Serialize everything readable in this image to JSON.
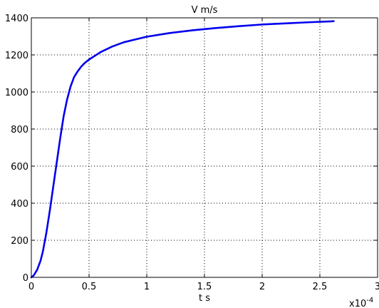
{
  "chart_data": {
    "type": "line",
    "title": "V m/s",
    "xlabel": "t s",
    "ylabel": "",
    "x_multiplier_label": "x10",
    "x_multiplier_exponent": "-4",
    "xlim": [
      0,
      3
    ],
    "ylim": [
      0,
      1400
    ],
    "xticks": [
      0,
      0.5,
      1,
      1.5,
      2,
      2.5,
      3
    ],
    "xtick_labels": [
      "0",
      "0.5",
      "1",
      "1.5",
      "2",
      "2.5",
      "3"
    ],
    "yticks": [
      0,
      200,
      400,
      600,
      800,
      1000,
      1200,
      1400
    ],
    "ytick_labels": [
      "0",
      "200",
      "400",
      "600",
      "800",
      "1000",
      "1200",
      "1400"
    ],
    "grid": true,
    "grid_style": "dotted",
    "series": [
      {
        "color": "#0000ee",
        "x": [
          0,
          0.02,
          0.05,
          0.08,
          0.1,
          0.13,
          0.16,
          0.19,
          0.22,
          0.25,
          0.28,
          0.31,
          0.34,
          0.37,
          0.4,
          0.43,
          0.46,
          0.5,
          0.55,
          0.6,
          0.7,
          0.8,
          0.9,
          1.0,
          1.2,
          1.4,
          1.6,
          1.8,
          2.0,
          2.2,
          2.4,
          2.6,
          2.62
        ],
        "y": [
          0,
          10,
          40,
          90,
          140,
          240,
          360,
          490,
          620,
          750,
          870,
          960,
          1030,
          1080,
          1110,
          1135,
          1155,
          1175,
          1195,
          1215,
          1245,
          1268,
          1283,
          1298,
          1318,
          1333,
          1345,
          1355,
          1364,
          1370,
          1376,
          1381,
          1382
        ]
      }
    ]
  }
}
